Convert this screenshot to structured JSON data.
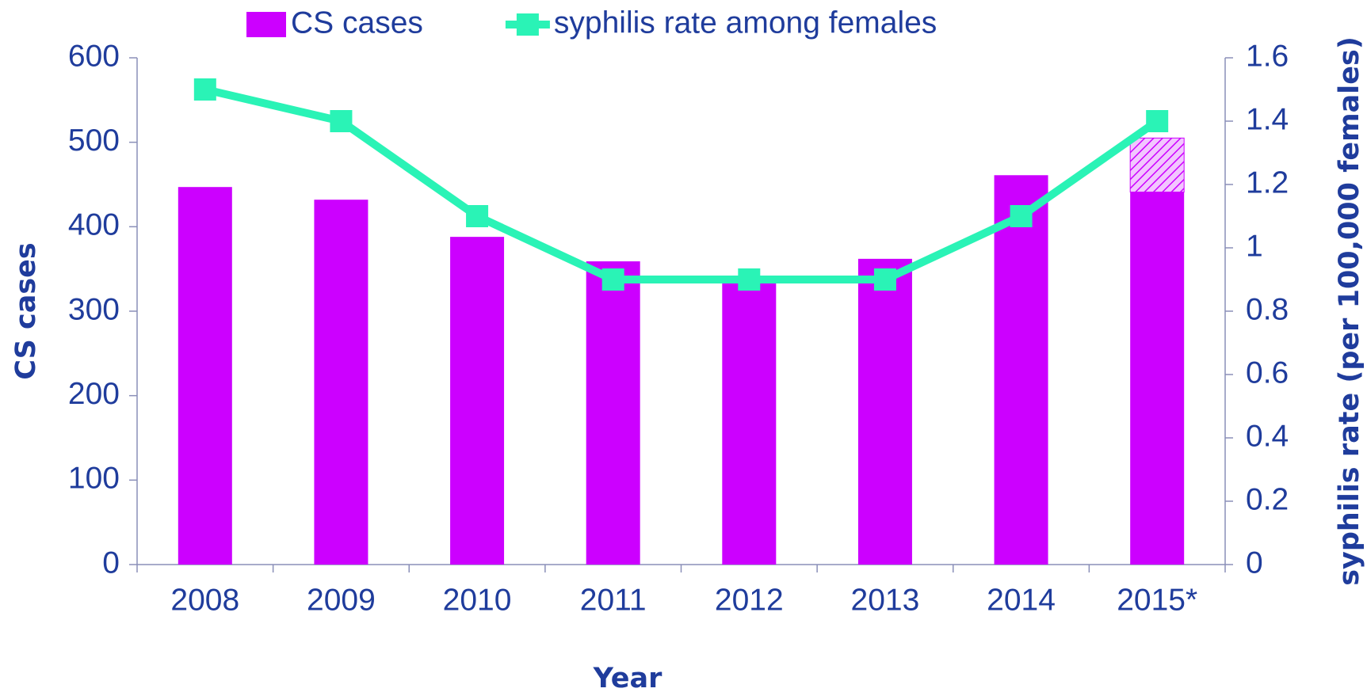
{
  "chart_data": {
    "type": "bar",
    "categories": [
      "2008",
      "2009",
      "2010",
      "2011",
      "2012",
      "2013",
      "2014",
      "2015*"
    ],
    "series": [
      {
        "name": "CS cases",
        "color": "#cc00ff",
        "values": [
          447,
          432,
          388,
          359,
          334,
          362,
          461,
          441
        ]
      },
      {
        "color": "#cc00ff",
        "pattern": "hatch",
        "values": [
          null,
          null,
          null,
          null,
          null,
          null,
          null,
          64
        ]
      },
      {
        "name": "syphilis rate among females",
        "type": "line",
        "axis": "y2",
        "color": "#2af3b6",
        "values": [
          1.5,
          1.4,
          1.1,
          0.9,
          0.9,
          0.9,
          1.1,
          1.4
        ]
      }
    ],
    "xlabel": "Year",
    "ylabel": "CS cases",
    "y2label": "syphilis rate (per 100,000 females)",
    "ylim": [
      0,
      600
    ],
    "yticks": [
      0,
      100,
      200,
      300,
      400,
      500,
      600
    ],
    "y2lim": [
      0,
      1.6
    ],
    "y2ticks": [
      0,
      0.2,
      0.4,
      0.6,
      0.8,
      1,
      1.2,
      1.4,
      1.6
    ],
    "grid": false,
    "legend": "top"
  }
}
